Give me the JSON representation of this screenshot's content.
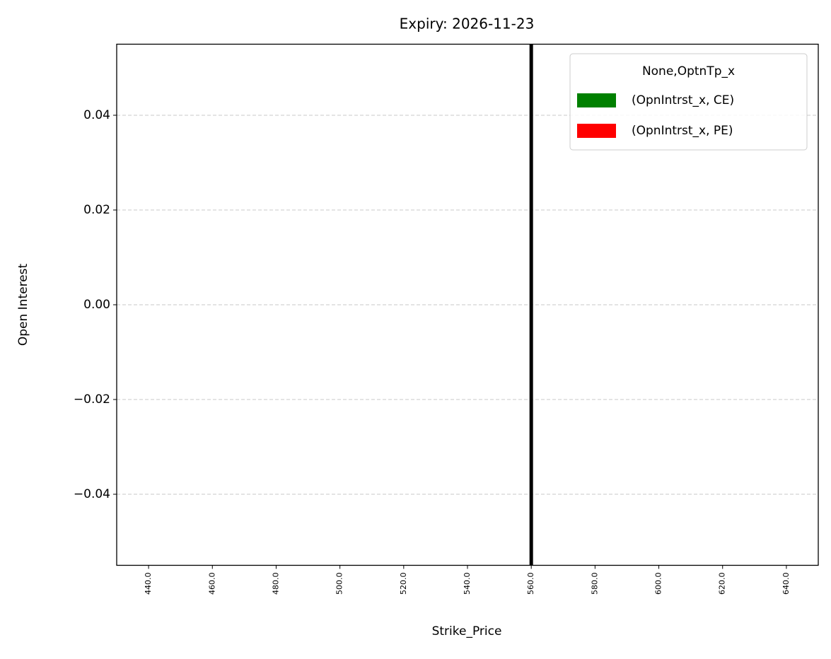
{
  "chart_data": {
    "type": "bar",
    "title": "Expiry: 2026-11-23",
    "x_label": "Strike_Price",
    "y_label": "Open Interest",
    "categories": [
      "440.0",
      "460.0",
      "480.0",
      "500.0",
      "520.0",
      "540.0",
      "560.0",
      "580.0",
      "600.0",
      "620.0",
      "640.0"
    ],
    "series": [
      {
        "name": "(OpnIntrst_x, CE)",
        "color": "#008000",
        "values": [
          0,
          0,
          0,
          0,
          0,
          0,
          0,
          0,
          0,
          0,
          0
        ]
      },
      {
        "name": "(OpnIntrst_x, PE)",
        "color": "#ff0000",
        "values": [
          0,
          0,
          0,
          0,
          0,
          0,
          0,
          0,
          0,
          0,
          0
        ]
      }
    ],
    "legend_title": "None,OptnTp_x",
    "legend": "upper right",
    "ylim": [
      -0.055,
      0.055
    ],
    "yticks": [
      {
        "value": -0.04,
        "label": "−0.04"
      },
      {
        "value": -0.02,
        "label": "−0.02"
      },
      {
        "value": 0,
        "label": "0.00"
      },
      0.02,
      0.04
    ],
    "grid": true,
    "vline": 560
  }
}
